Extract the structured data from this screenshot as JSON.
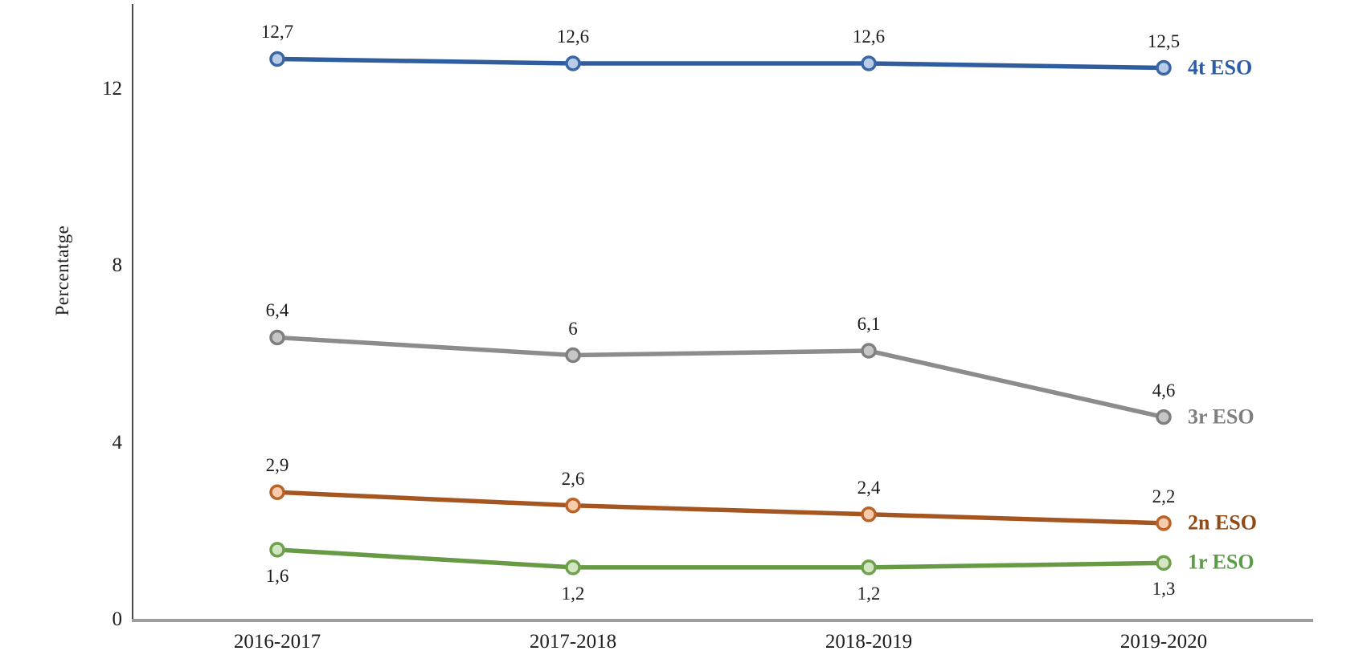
{
  "chart_data": {
    "type": "line",
    "title": "",
    "xlabel": "",
    "ylabel": "Percentatge",
    "categories": [
      "2016-2017",
      "2017-2018",
      "2018-2019",
      "2019-2020"
    ],
    "yticks": [
      0,
      4,
      8,
      12
    ],
    "ytick_labels": [
      "0",
      "4",
      "8",
      "12"
    ],
    "ylim": [
      0,
      13.9
    ],
    "grid": false,
    "decimal_separator": ",",
    "legend_position": "right-of-last-point",
    "axis_v_color": "#4a4a4a",
    "axis_h_color": "#9e9e9e",
    "series": [
      {
        "name": "4t ESO",
        "values": [
          12.7,
          12.6,
          12.6,
          12.5
        ],
        "labels": [
          "12,7",
          "12,6",
          "12,6",
          "12,5"
        ],
        "label_position": "above",
        "line_color": "#2F5D9E",
        "marker_fill": "#B7CCE6",
        "marker_stroke": "#3B66A5",
        "name_color": "#2A5CA8"
      },
      {
        "name": "3r ESO",
        "values": [
          6.4,
          6,
          6.1,
          4.6
        ],
        "labels": [
          "6,4",
          "6",
          "6,1",
          "4,6"
        ],
        "label_position": "above",
        "line_color": "#8C8C8C",
        "marker_fill": "#C6C6C6",
        "marker_stroke": "#7F7F7F",
        "name_color": "#7F7F7F"
      },
      {
        "name": "2n ESO",
        "values": [
          2.9,
          2.6,
          2.4,
          2.2
        ],
        "labels": [
          "2,9",
          "2,6",
          "2,4",
          "2,2"
        ],
        "label_position": "above",
        "line_color": "#A5551F",
        "marker_fill": "#F8CBAD",
        "marker_stroke": "#BB6228",
        "name_color": "#8F4A16"
      },
      {
        "name": "1r ESO",
        "values": [
          1.6,
          1.2,
          1.2,
          1.3
        ],
        "labels": [
          "1,6",
          "1,2",
          "1,2",
          "1,3"
        ],
        "label_position": "below",
        "line_color": "#669A44",
        "marker_fill": "#D3E6C3",
        "marker_stroke": "#6FA14C",
        "name_color": "#5C9B47"
      }
    ]
  }
}
